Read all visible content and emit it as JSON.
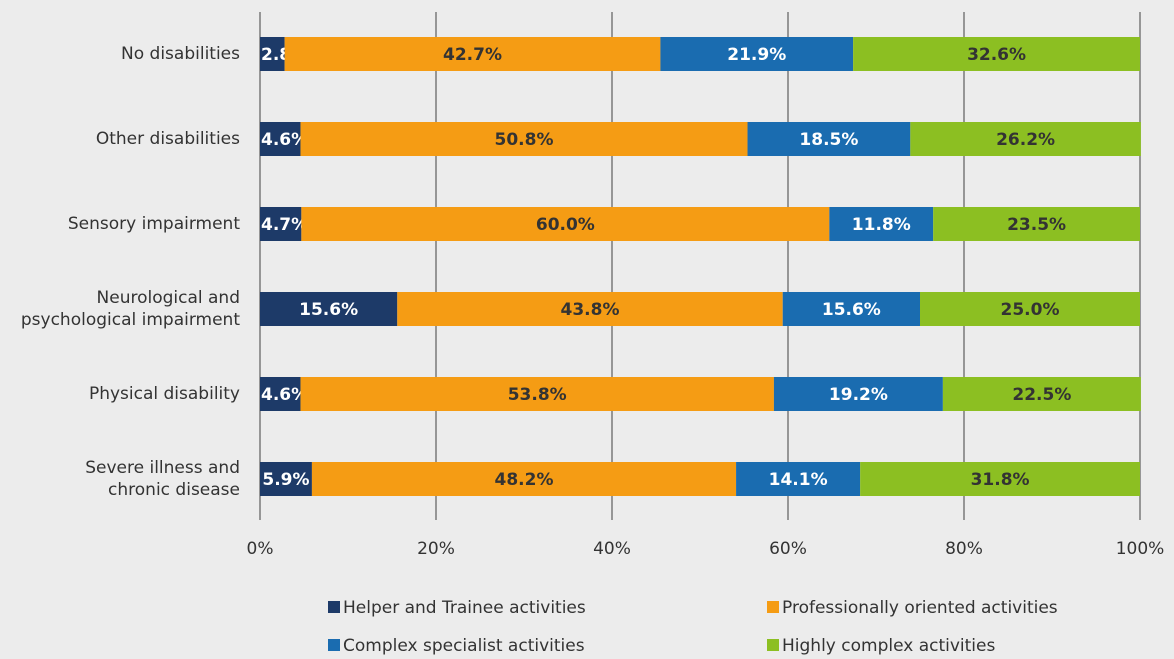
{
  "chart_data": {
    "type": "stacked-bar-horizontal",
    "categories": [
      "No disabilities",
      "Other disabilities",
      "Sensory impairment",
      "Neurological and\npsychological impairment",
      "Physical disability",
      "Severe illness and\nchronic disease"
    ],
    "series": [
      {
        "name": "Helper and Trainee activities",
        "color": "#1d3a68",
        "values": [
          2.8,
          4.6,
          4.7,
          15.6,
          4.6,
          5.9
        ],
        "value_labels": [
          "2.8%",
          "4.6%",
          "4.7%",
          "15.6%",
          "4.6%",
          "5.9%"
        ]
      },
      {
        "name": "Professionally oriented activities",
        "color": "#f59c14",
        "values": [
          42.7,
          50.8,
          60.0,
          43.8,
          53.8,
          48.2
        ],
        "value_labels": [
          "42.7%",
          "50.8%",
          "60.0%",
          "43.8%",
          "53.8%",
          "48.2%"
        ]
      },
      {
        "name": "Complex specialist activities",
        "color": "#1a6cb0",
        "values": [
          21.9,
          18.5,
          11.8,
          15.6,
          19.2,
          14.1
        ],
        "value_labels": [
          "21.9%",
          "18.5%",
          "11.8%",
          "15.6%",
          "19.2%",
          "14.1%"
        ]
      },
      {
        "name": "Highly complex activities",
        "color": "#8cbf22",
        "values": [
          32.6,
          26.2,
          23.5,
          25.0,
          22.5,
          31.8
        ],
        "value_labels": [
          "32.6%",
          "26.2%",
          "23.5%",
          "25.0%",
          "22.5%",
          "31.8%"
        ]
      }
    ],
    "xlim": [
      0,
      100
    ],
    "xticks": [
      {
        "value": 0,
        "label": "0%"
      },
      {
        "value": 20,
        "label": "20%"
      },
      {
        "value": 40,
        "label": "40%"
      },
      {
        "value": 60,
        "label": "60%"
      },
      {
        "value": 80,
        "label": "80%"
      },
      {
        "value": 100,
        "label": "100%"
      }
    ],
    "grid": true
  }
}
